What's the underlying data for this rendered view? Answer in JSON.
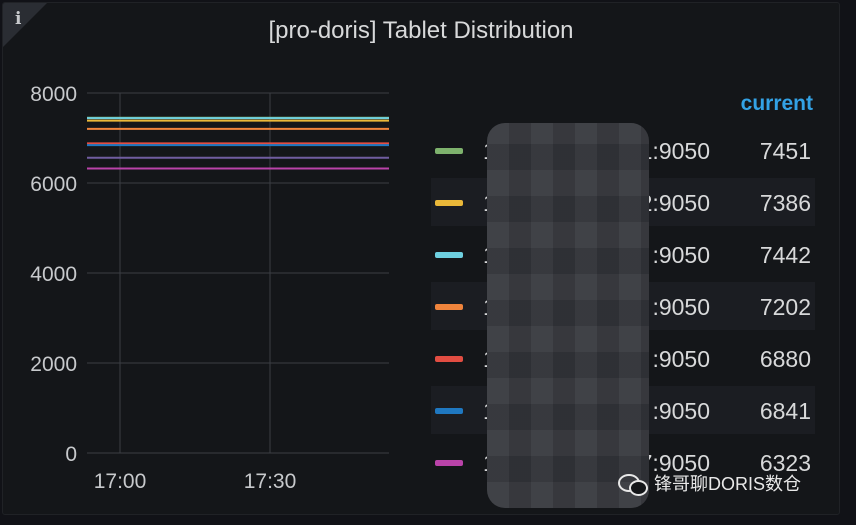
{
  "panel": {
    "title": "[pro-doris] Tablet Distribution",
    "info_icon": "info-icon"
  },
  "chart_data": {
    "type": "line",
    "title": "[pro-doris] Tablet Distribution",
    "x_ticks": [
      "17:00",
      "17:30"
    ],
    "y_ticks": [
      "0",
      "2000",
      "4000",
      "6000",
      "8000"
    ],
    "ylim": [
      0,
      8000
    ],
    "grid": true,
    "series": [
      {
        "color": "#7eb26d",
        "values": [
          7451,
          7451
        ]
      },
      {
        "color": "#eab839",
        "values": [
          7386,
          7386
        ]
      },
      {
        "color": "#6ed0e0",
        "values": [
          7442,
          7442
        ]
      },
      {
        "color": "#ef843c",
        "values": [
          7202,
          7202
        ]
      },
      {
        "color": "#e24d42",
        "values": [
          6880,
          6880
        ]
      },
      {
        "color": "#1f78c1",
        "values": [
          6841,
          6841
        ]
      },
      {
        "color": "#ba43a9",
        "values": [
          6323,
          6323
        ]
      },
      {
        "color": "#705da0",
        "values": [
          6560,
          6560
        ]
      }
    ]
  },
  "legend": {
    "header": "current",
    "rows": [
      {
        "prefix": "1",
        "suffix": "1:9050",
        "value": "7451",
        "color": "#7eb26d"
      },
      {
        "prefix": "1",
        "suffix": "2:9050",
        "value": "7386",
        "color": "#eab839"
      },
      {
        "prefix": "1",
        "suffix": ":9050",
        "value": "7442",
        "color": "#6ed0e0"
      },
      {
        "prefix": "1",
        "suffix": ":9050",
        "value": "7202",
        "color": "#ef843c"
      },
      {
        "prefix": "1",
        "suffix": ":9050",
        "value": "6880",
        "color": "#e24d42"
      },
      {
        "prefix": "1",
        "suffix": ":9050",
        "value": "6841",
        "color": "#1f78c1"
      },
      {
        "prefix": "1",
        "suffix": "7:9050",
        "value": "6323",
        "color": "#ba43a9"
      }
    ]
  },
  "watermark": {
    "text": "锋哥聊DORIS数仓",
    "icon": "wechat-icon"
  }
}
